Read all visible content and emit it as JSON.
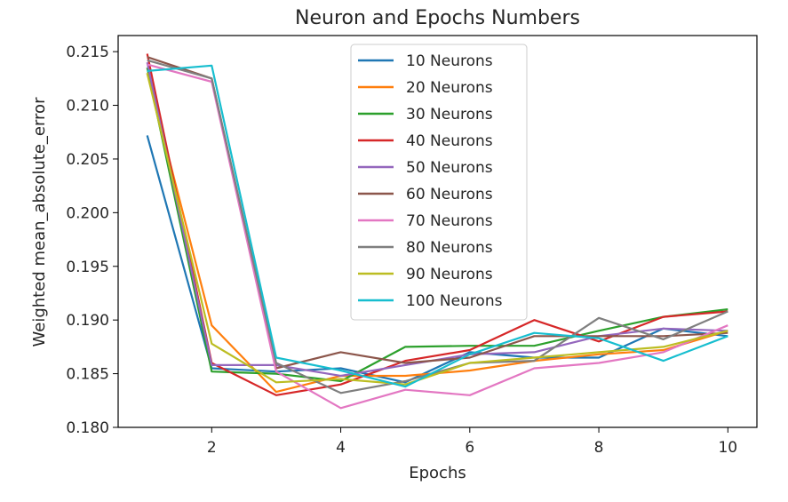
{
  "chart_data": {
    "type": "line",
    "title": "Neuron and Epochs Numbers",
    "xlabel": "Epochs",
    "ylabel": "Weighted mean_absolute_error",
    "xlim": [
      0.55,
      10.45
    ],
    "ylim": [
      0.18,
      0.2165
    ],
    "xticks": [
      2,
      4,
      6,
      8,
      10
    ],
    "yticks": [
      0.18,
      0.185,
      0.19,
      0.195,
      0.2,
      0.205,
      0.21,
      0.215
    ],
    "ytick_labels": [
      "0.180",
      "0.185",
      "0.190",
      "0.195",
      "0.200",
      "0.205",
      "0.210",
      "0.215"
    ],
    "grid": false,
    "legend_position": "upper center",
    "x": [
      1,
      2,
      3,
      4,
      5,
      6,
      7,
      8,
      9,
      10
    ],
    "series": [
      {
        "name": "10 Neurons",
        "color": "#1f77b4",
        "values": [
          0.2072,
          0.1855,
          0.1852,
          0.1855,
          0.1842,
          0.187,
          0.1865,
          0.1865,
          0.1892,
          0.1885
        ]
      },
      {
        "name": "20 Neurons",
        "color": "#ff7f0e",
        "values": [
          0.213,
          0.1895,
          0.1833,
          0.1848,
          0.1848,
          0.1853,
          0.1862,
          0.1868,
          0.1872,
          0.189
        ]
      },
      {
        "name": "30 Neurons",
        "color": "#2ca02c",
        "values": [
          0.2135,
          0.1852,
          0.185,
          0.1843,
          0.1875,
          0.1876,
          0.1876,
          0.189,
          0.1903,
          0.191
        ]
      },
      {
        "name": "40 Neurons",
        "color": "#d62728",
        "values": [
          0.2148,
          0.186,
          0.183,
          0.184,
          0.1862,
          0.1872,
          0.19,
          0.188,
          0.1903,
          0.1908
        ]
      },
      {
        "name": "50 Neurons",
        "color": "#9467bd",
        "values": [
          0.214,
          0.1858,
          0.1858,
          0.1848,
          0.1858,
          0.1868,
          0.187,
          0.1885,
          0.1892,
          0.189
        ]
      },
      {
        "name": "60 Neurons",
        "color": "#8c564b",
        "values": [
          0.2145,
          0.2125,
          0.1855,
          0.187,
          0.186,
          0.1865,
          0.1885,
          0.1885,
          0.1885,
          0.1888
        ]
      },
      {
        "name": "70 Neurons",
        "color": "#e377c2",
        "values": [
          0.2138,
          0.2122,
          0.1852,
          0.1818,
          0.1835,
          0.183,
          0.1855,
          0.186,
          0.187,
          0.1895
        ]
      },
      {
        "name": "80 Neurons",
        "color": "#7f7f7f",
        "values": [
          0.2142,
          0.2125,
          0.186,
          0.1832,
          0.1843,
          0.186,
          0.1862,
          0.1902,
          0.1882,
          0.1908
        ]
      },
      {
        "name": "90 Neurons",
        "color": "#bcbd22",
        "values": [
          0.213,
          0.1878,
          0.1842,
          0.1845,
          0.184,
          0.186,
          0.1865,
          0.187,
          0.1875,
          0.189
        ]
      },
      {
        "name": "100 Neurons",
        "color": "#17becf",
        "values": [
          0.2132,
          0.2137,
          0.1865,
          0.1853,
          0.1838,
          0.1868,
          0.1888,
          0.1883,
          0.1862,
          0.1885
        ]
      }
    ]
  }
}
